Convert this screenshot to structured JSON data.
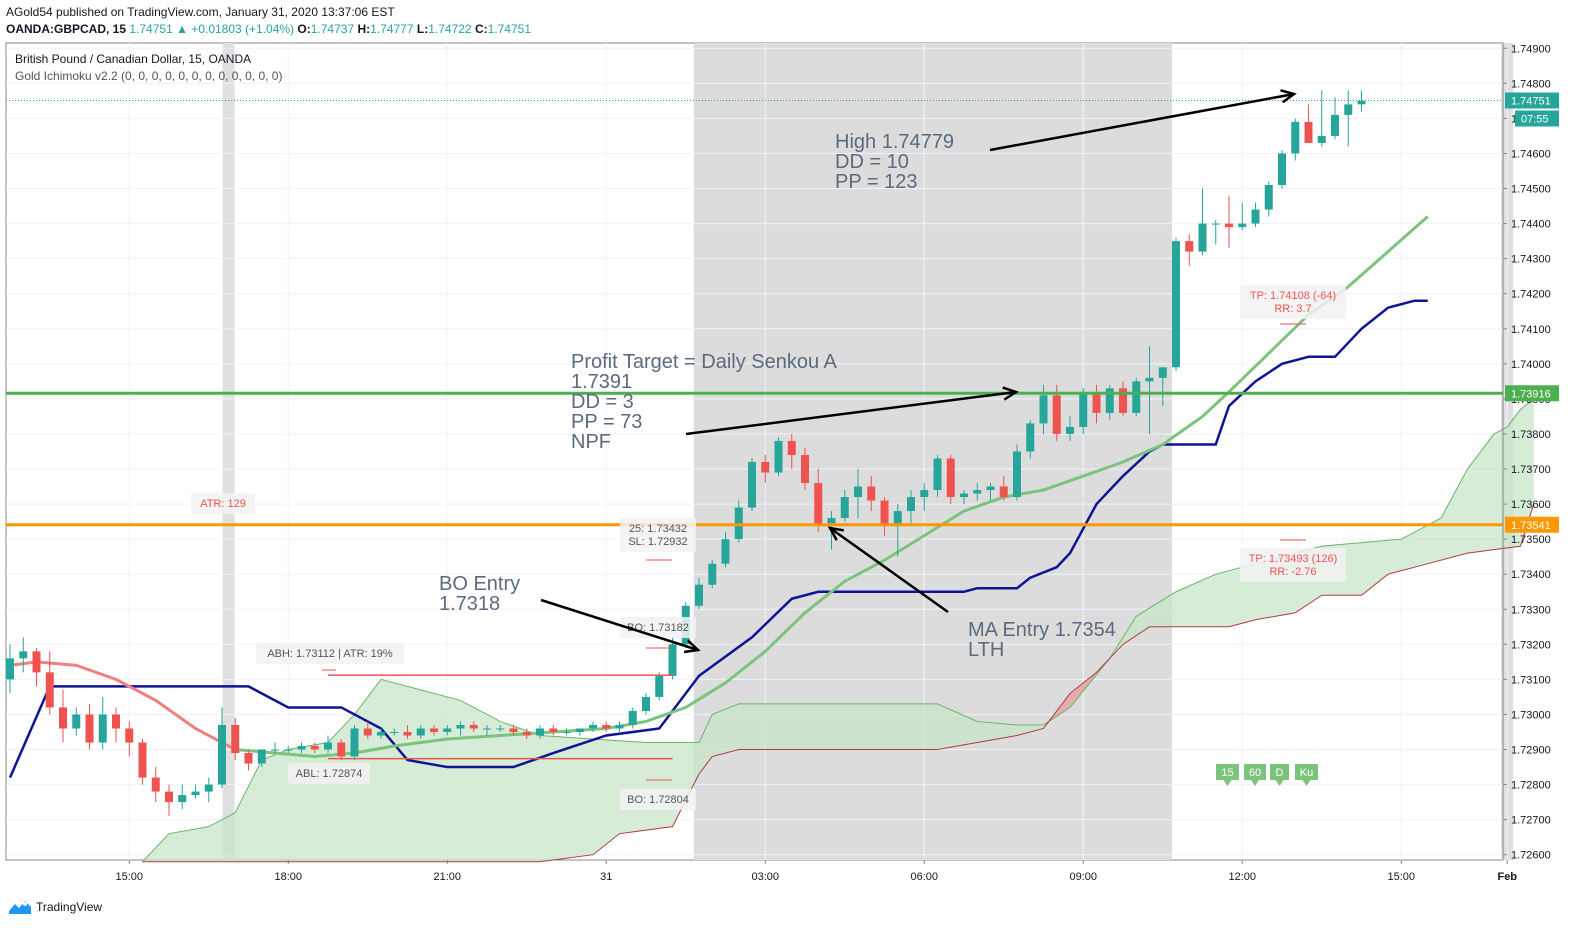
{
  "header": {
    "published": "AGold54 published on TradingView.com, January 31, 2020 13:37:06 EST",
    "symbol": "OANDA:GBPCAD, 15",
    "last": "1.74751",
    "change": "▲ +0.01803 (+1.04%)",
    "o_label": "O:",
    "o": "1.74737",
    "h_label": "H:",
    "h": "1.74777",
    "l_label": "L:",
    "l": "1.74722",
    "c_label": "C:",
    "c": "1.74751"
  },
  "legend": {
    "title": "British Pound / Canadian Dollar, 15, OANDA",
    "indicator": "Gold Ichimoku v2.2 (0, 0, 0, 0, 0, 0, 0, 0, 0, 0, 0, 0)"
  },
  "footer": {
    "brand": "TradingView"
  },
  "colors": {
    "bull": "#26a69a",
    "bear": "#ef5350",
    "kijun": "#0d1594",
    "tenkan_start": "#f08080",
    "tenkan": "#7cc47c",
    "cloud_green": "#c8e6c9",
    "cloud_red": "#e8a4a4",
    "green_level": "#4caf50",
    "orange_level": "#ff9800",
    "session": "#dcdcdc"
  },
  "chart_data": {
    "type": "candlestick",
    "ylim": [
      1.7255,
      1.7495
    ],
    "y_ticks": [
      "1.72600",
      "1.72700",
      "1.72800",
      "1.72900",
      "1.73000",
      "1.73100",
      "1.73200",
      "1.73300",
      "1.73400",
      "1.73500",
      "1.73600",
      "1.73700",
      "1.73800",
      "1.73900",
      "1.74000",
      "1.74100",
      "1.74200",
      "1.74300",
      "1.74400",
      "1.74500",
      "1.74600",
      "1.74700",
      "1.74800",
      "1.74900"
    ],
    "x_ticks": [
      "15:00",
      "18:00",
      "21:00",
      "31",
      "03:00",
      "06:00",
      "09:00",
      "12:00",
      "15:00",
      "Feb"
    ],
    "x_tick_bars": [
      9,
      21,
      33,
      45,
      57,
      69,
      81,
      93,
      105,
      113
    ],
    "bars_in_view": 114,
    "candles": [
      [
        1.731,
        1.732,
        1.7306,
        1.7316
      ],
      [
        1.7316,
        1.7322,
        1.7312,
        1.7318
      ],
      [
        1.7318,
        1.7319,
        1.7308,
        1.7312
      ],
      [
        1.7312,
        1.7318,
        1.73,
        1.7302
      ],
      [
        1.7302,
        1.7307,
        1.7292,
        1.7296
      ],
      [
        1.7296,
        1.7302,
        1.7294,
        1.73
      ],
      [
        1.73,
        1.7303,
        1.729,
        1.7292
      ],
      [
        1.7292,
        1.7305,
        1.729,
        1.73
      ],
      [
        1.73,
        1.7302,
        1.7292,
        1.7296
      ],
      [
        1.7296,
        1.7298,
        1.7288,
        1.7292
      ],
      [
        1.7292,
        1.7293,
        1.728,
        1.7282
      ],
      [
        1.7282,
        1.7285,
        1.7275,
        1.7278
      ],
      [
        1.7278,
        1.728,
        1.7271,
        1.7275
      ],
      [
        1.7275,
        1.728,
        1.7273,
        1.7277
      ],
      [
        1.7277,
        1.728,
        1.7276,
        1.7278
      ],
      [
        1.7278,
        1.7282,
        1.7275,
        1.728
      ],
      [
        1.728,
        1.7302,
        1.7279,
        1.7297
      ],
      [
        1.7297,
        1.7299,
        1.7287,
        1.7289
      ],
      [
        1.7289,
        1.729,
        1.7284,
        1.7286
      ],
      [
        1.7286,
        1.729,
        1.7285,
        1.729
      ],
      [
        1.729,
        1.7292,
        1.7289,
        1.729
      ],
      [
        1.729,
        1.7291,
        1.7289,
        1.729
      ],
      [
        1.729,
        1.7292,
        1.7289,
        1.7291
      ],
      [
        1.7291,
        1.7292,
        1.7289,
        1.729
      ],
      [
        1.729,
        1.7294,
        1.7289,
        1.7292
      ],
      [
        1.7292,
        1.7293,
        1.7287,
        1.7288
      ],
      [
        1.7288,
        1.7297,
        1.7287,
        1.7296
      ],
      [
        1.7296,
        1.7298,
        1.7293,
        1.7294
      ],
      [
        1.7294,
        1.7296,
        1.7293,
        1.7295
      ],
      [
        1.7295,
        1.7296,
        1.7294,
        1.7295
      ],
      [
        1.7295,
        1.7297,
        1.7293,
        1.7294
      ],
      [
        1.7294,
        1.7297,
        1.7293,
        1.7296
      ],
      [
        1.7296,
        1.7297,
        1.7294,
        1.7295
      ],
      [
        1.7295,
        1.7297,
        1.7294,
        1.7296
      ],
      [
        1.7296,
        1.7298,
        1.7294,
        1.7297
      ],
      [
        1.7297,
        1.7298,
        1.7295,
        1.7296
      ],
      [
        1.7296,
        1.7297,
        1.7294,
        1.7296
      ],
      [
        1.7296,
        1.7297,
        1.7295,
        1.7296
      ],
      [
        1.7296,
        1.7297,
        1.7294,
        1.7295
      ],
      [
        1.7295,
        1.7296,
        1.7293,
        1.7294
      ],
      [
        1.7294,
        1.7297,
        1.7293,
        1.7296
      ],
      [
        1.7296,
        1.7297,
        1.7294,
        1.7295
      ],
      [
        1.7295,
        1.7296,
        1.7294,
        1.7295
      ],
      [
        1.7295,
        1.7296,
        1.7294,
        1.7296
      ],
      [
        1.7296,
        1.7298,
        1.7295,
        1.7297
      ],
      [
        1.7297,
        1.7298,
        1.7295,
        1.7296
      ],
      [
        1.7296,
        1.7298,
        1.7295,
        1.7297
      ],
      [
        1.7297,
        1.7302,
        1.7296,
        1.7301
      ],
      [
        1.7301,
        1.7306,
        1.73,
        1.7305
      ],
      [
        1.7305,
        1.7312,
        1.7304,
        1.7311
      ],
      [
        1.7311,
        1.7322,
        1.731,
        1.732
      ],
      [
        1.732,
        1.7332,
        1.7319,
        1.7331
      ],
      [
        1.7331,
        1.7339,
        1.733,
        1.7337
      ],
      [
        1.7337,
        1.7344,
        1.7336,
        1.7343
      ],
      [
        1.7343,
        1.7352,
        1.7342,
        1.735
      ],
      [
        1.735,
        1.7361,
        1.7349,
        1.7359
      ],
      [
        1.7359,
        1.7373,
        1.7358,
        1.7372
      ],
      [
        1.7372,
        1.7374,
        1.7366,
        1.7369
      ],
      [
        1.7369,
        1.7379,
        1.7368,
        1.7378
      ],
      [
        1.7378,
        1.738,
        1.737,
        1.7374
      ],
      [
        1.7374,
        1.7376,
        1.7364,
        1.7366
      ],
      [
        1.7366,
        1.737,
        1.7352,
        1.7354
      ],
      [
        1.7354,
        1.7358,
        1.7347,
        1.7356
      ],
      [
        1.7356,
        1.7364,
        1.7355,
        1.7362
      ],
      [
        1.7362,
        1.737,
        1.7356,
        1.7365
      ],
      [
        1.7365,
        1.7368,
        1.7358,
        1.7361
      ],
      [
        1.7361,
        1.7362,
        1.7351,
        1.7354
      ],
      [
        1.7354,
        1.736,
        1.7345,
        1.7358
      ],
      [
        1.7358,
        1.7364,
        1.7354,
        1.7362
      ],
      [
        1.7362,
        1.7366,
        1.7358,
        1.7364
      ],
      [
        1.7364,
        1.7374,
        1.7362,
        1.7373
      ],
      [
        1.7373,
        1.7374,
        1.736,
        1.7362
      ],
      [
        1.7362,
        1.7364,
        1.736,
        1.7363
      ],
      [
        1.7363,
        1.7366,
        1.7361,
        1.7364
      ],
      [
        1.7364,
        1.7366,
        1.7361,
        1.7365
      ],
      [
        1.7365,
        1.7368,
        1.7361,
        1.7362
      ],
      [
        1.7362,
        1.7377,
        1.7361,
        1.7375
      ],
      [
        1.7375,
        1.7384,
        1.7373,
        1.7383
      ],
      [
        1.7383,
        1.7394,
        1.738,
        1.7391
      ],
      [
        1.7391,
        1.7394,
        1.7378,
        1.738
      ],
      [
        1.738,
        1.7385,
        1.7378,
        1.7382
      ],
      [
        1.7382,
        1.7393,
        1.738,
        1.7392
      ],
      [
        1.7392,
        1.7394,
        1.7383,
        1.7386
      ],
      [
        1.7386,
        1.7394,
        1.7384,
        1.7393
      ],
      [
        1.7393,
        1.7395,
        1.7385,
        1.7386
      ],
      [
        1.7386,
        1.7396,
        1.7385,
        1.7395
      ],
      [
        1.7395,
        1.7405,
        1.738,
        1.7396
      ],
      [
        1.7396,
        1.7399,
        1.7388,
        1.7399
      ],
      [
        1.7399,
        1.7436,
        1.7398,
        1.7435
      ],
      [
        1.7435,
        1.7437,
        1.7428,
        1.7432
      ],
      [
        1.7432,
        1.745,
        1.7431,
        1.744
      ],
      [
        1.744,
        1.7441,
        1.7434,
        1.744
      ],
      [
        1.744,
        1.7448,
        1.7433,
        1.7439
      ],
      [
        1.7439,
        1.7446,
        1.7438,
        1.744
      ],
      [
        1.744,
        1.7446,
        1.7439,
        1.7444
      ],
      [
        1.7444,
        1.7452,
        1.7442,
        1.7451
      ],
      [
        1.7451,
        1.7461,
        1.745,
        1.746
      ],
      [
        1.746,
        1.747,
        1.7458,
        1.7469
      ],
      [
        1.7469,
        1.7474,
        1.7463,
        1.7463
      ],
      [
        1.7463,
        1.7478,
        1.7462,
        1.7465
      ],
      [
        1.7465,
        1.7476,
        1.7464,
        1.7471
      ],
      [
        1.7471,
        1.7478,
        1.7462,
        1.7474
      ],
      [
        1.7474,
        1.7478,
        1.7472,
        1.7475
      ]
    ],
    "kijun": [
      [
        0,
        1.7282
      ],
      [
        3,
        1.7308
      ],
      [
        18,
        1.7308
      ],
      [
        21,
        1.7302
      ],
      [
        25,
        1.7302
      ],
      [
        28,
        1.7296
      ],
      [
        30,
        1.7287
      ],
      [
        33,
        1.7285
      ],
      [
        38,
        1.7285
      ],
      [
        41,
        1.7289
      ],
      [
        45,
        1.7294
      ],
      [
        49,
        1.7296
      ],
      [
        52,
        1.7311
      ],
      [
        56,
        1.7322
      ],
      [
        59,
        1.7333
      ],
      [
        61,
        1.7335
      ],
      [
        72,
        1.7335
      ],
      [
        73,
        1.7336
      ],
      [
        76,
        1.7336
      ],
      [
        77,
        1.7339
      ],
      [
        79,
        1.7342
      ],
      [
        80,
        1.7346
      ],
      [
        82,
        1.736
      ],
      [
        84,
        1.7368
      ],
      [
        86,
        1.7375
      ],
      [
        87,
        1.7377
      ],
      [
        91,
        1.7377
      ],
      [
        92,
        1.7388
      ],
      [
        94,
        1.7395
      ],
      [
        96,
        1.74
      ],
      [
        97,
        1.7401
      ],
      [
        98,
        1.7402
      ],
      [
        100,
        1.7402
      ],
      [
        102,
        1.741
      ],
      [
        104,
        1.7416
      ],
      [
        106,
        1.7418
      ],
      [
        107,
        1.7418
      ]
    ],
    "tenkan": [
      [
        0,
        1.7314
      ],
      [
        2,
        1.7315
      ],
      [
        5,
        1.7314
      ],
      [
        8,
        1.731
      ],
      [
        11,
        1.7304
      ],
      [
        14,
        1.7296
      ],
      [
        17,
        1.729
      ],
      [
        20,
        1.7289
      ],
      [
        23,
        1.7288
      ],
      [
        26,
        1.7289
      ],
      [
        29,
        1.7291
      ],
      [
        33,
        1.7293
      ],
      [
        37,
        1.7294
      ],
      [
        41,
        1.7295
      ],
      [
        45,
        1.7296
      ],
      [
        48,
        1.7298
      ],
      [
        51,
        1.7302
      ],
      [
        54,
        1.7309
      ],
      [
        57,
        1.7318
      ],
      [
        60,
        1.7329
      ],
      [
        63,
        1.7338
      ],
      [
        66,
        1.7344
      ],
      [
        69,
        1.7351
      ],
      [
        72,
        1.7358
      ],
      [
        75,
        1.7362
      ],
      [
        78,
        1.7364
      ],
      [
        81,
        1.7368
      ],
      [
        84,
        1.7372
      ],
      [
        87,
        1.7377
      ],
      [
        90,
        1.7385
      ],
      [
        92,
        1.7392
      ],
      [
        95,
        1.7403
      ],
      [
        98,
        1.7414
      ],
      [
        101,
        1.7422
      ],
      [
        104,
        1.7432
      ],
      [
        107,
        1.7442
      ]
    ],
    "tenkan_color_change_bar": 18,
    "span_a": [
      [
        10,
        1.7258
      ],
      [
        12,
        1.7266
      ],
      [
        15,
        1.7268
      ],
      [
        17,
        1.7272
      ],
      [
        19,
        1.7287
      ],
      [
        21,
        1.729
      ],
      [
        24,
        1.7292
      ],
      [
        26,
        1.73
      ],
      [
        28,
        1.731
      ],
      [
        31,
        1.7307
      ],
      [
        34,
        1.7304
      ],
      [
        37,
        1.7298
      ],
      [
        40,
        1.7294
      ],
      [
        44,
        1.7293
      ],
      [
        48,
        1.7292
      ],
      [
        52,
        1.7292
      ],
      [
        53,
        1.73
      ],
      [
        55,
        1.7303
      ],
      [
        70,
        1.7303
      ],
      [
        73,
        1.7298
      ],
      [
        76,
        1.7297
      ],
      [
        78,
        1.7297
      ],
      [
        80,
        1.7302
      ],
      [
        83,
        1.7316
      ],
      [
        85,
        1.7328
      ],
      [
        88,
        1.7335
      ],
      [
        91,
        1.734
      ],
      [
        94,
        1.7343
      ],
      [
        96,
        1.7345
      ],
      [
        99,
        1.7348
      ],
      [
        102,
        1.7349
      ],
      [
        105,
        1.735
      ],
      [
        108,
        1.7356
      ],
      [
        110,
        1.737
      ],
      [
        112,
        1.738
      ],
      [
        113,
        1.7382
      ],
      [
        114,
        1.7387
      ],
      [
        115,
        1.739
      ]
    ],
    "span_b": [
      [
        10,
        1.7258
      ],
      [
        20,
        1.7258
      ],
      [
        40,
        1.7258
      ],
      [
        44,
        1.726
      ],
      [
        46,
        1.7266
      ],
      [
        48,
        1.7267
      ],
      [
        50,
        1.7268
      ],
      [
        52,
        1.7283
      ],
      [
        53,
        1.7288
      ],
      [
        55,
        1.729
      ],
      [
        70,
        1.729
      ],
      [
        73,
        1.7292
      ],
      [
        76,
        1.7294
      ],
      [
        78,
        1.7296
      ],
      [
        80,
        1.7306
      ],
      [
        82,
        1.7312
      ],
      [
        84,
        1.732
      ],
      [
        86,
        1.7325
      ],
      [
        92,
        1.7325
      ],
      [
        94,
        1.7327
      ],
      [
        97,
        1.7329
      ],
      [
        99,
        1.7334
      ],
      [
        102,
        1.7334
      ],
      [
        104,
        1.734
      ],
      [
        106,
        1.7342
      ],
      [
        110,
        1.7346
      ],
      [
        114,
        1.7348
      ],
      [
        115,
        1.736
      ]
    ],
    "levels": [
      {
        "name": "green-level",
        "price": 1.73916,
        "label": "1.73916",
        "color": "#4caf50"
      },
      {
        "name": "orange-level",
        "price": 1.73541,
        "label": "1.73541",
        "color": "#ff9800"
      },
      {
        "name": "last-price",
        "price": 1.74751,
        "label": "1.74751",
        "color": "#26a69a"
      }
    ],
    "countdown": "07:55",
    "sessions": [
      {
        "from": 51.6,
        "to": 87.7
      }
    ],
    "day_dividers": [
      16.5,
      113
    ]
  },
  "annotations": [
    {
      "name": "high-annotation",
      "lines": [
        "High 1.74779",
        "DD = 10",
        "PP = 123"
      ]
    },
    {
      "name": "profit-target-annotation",
      "lines": [
        "Profit Target = Daily Senkou A",
        "1.7391",
        "DD = 3",
        "PP = 73",
        "NPF"
      ]
    },
    {
      "name": "bo-entry-annotation",
      "lines": [
        "BO Entry",
        "1.7318"
      ]
    },
    {
      "name": "ma-entry-annotation",
      "lines": [
        "MA Entry 1.7354",
        "LTH"
      ]
    }
  ],
  "labels": {
    "atr": "ATR: 129",
    "abh": "ABH: 1.73112 | ATR: 19%",
    "abl": "ABL: 1.72874",
    "entry_25": "25: 1.73432",
    "entry_sl": "SL: 1.72932",
    "bo_top": "BO: 1.73182",
    "bo_bottom": "BO: 1.72804",
    "tp_upper": "TP: 1.74108 (-64)",
    "rr_upper": "RR: 3.7",
    "tp_lower": "TP: 1.73493 (126)",
    "rr_lower": "RR: -2.76"
  },
  "abh_line": {
    "price": 1.73112,
    "from": 24,
    "to": 50
  },
  "abl_line": {
    "price": 1.72874,
    "from": 24,
    "to": 50
  },
  "timeframe_buttons": [
    "15",
    "60",
    "D",
    "Ku"
  ]
}
